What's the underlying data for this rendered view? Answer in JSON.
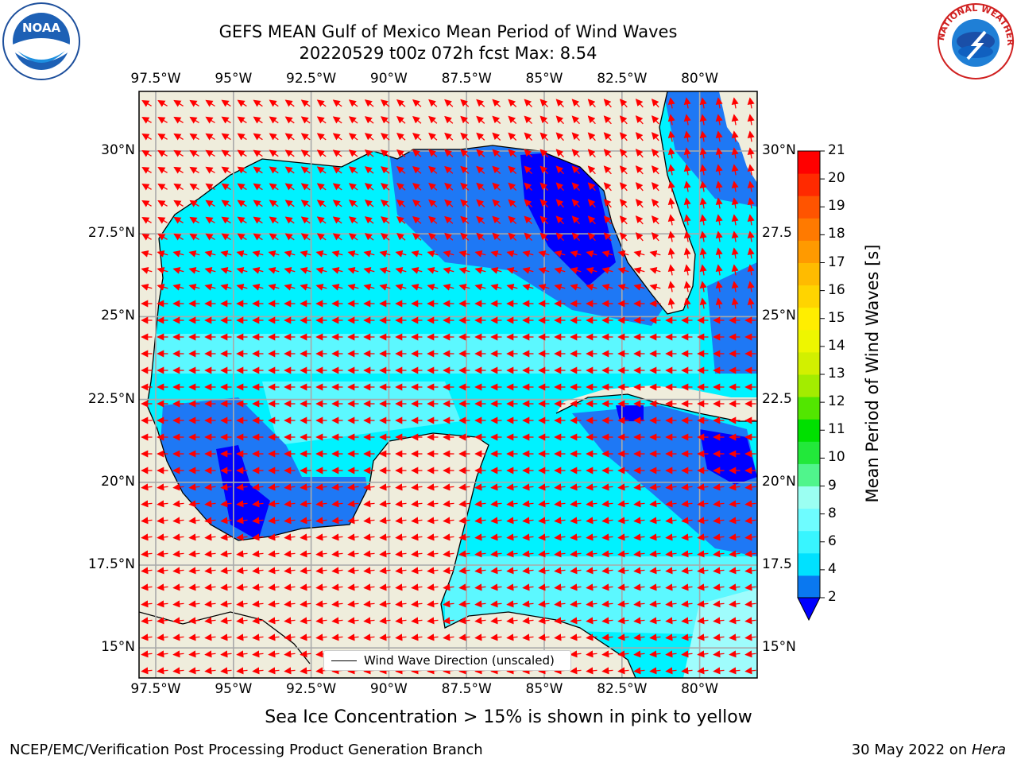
{
  "title": {
    "line1": "GEFS MEAN Gulf of Mexico Mean Period of Wind Waves",
    "line2": "20220529 t00z 072h fcst   Max: 8.54"
  },
  "logos": {
    "left": {
      "name": "noaa-logo",
      "text": "NOAA"
    },
    "right": {
      "name": "nws-logo",
      "text": "NATIONAL WEATHER SERVICE"
    }
  },
  "axes": {
    "lon_labels": [
      "97.5°W",
      "95°W",
      "92.5°W",
      "90°W",
      "87.5°W",
      "85°W",
      "82.5°W",
      "80°W"
    ],
    "lat_labels": [
      "30°N",
      "27.5°N",
      "25°N",
      "22.5°N",
      "20°N",
      "17.5°N",
      "15°N"
    ],
    "right_lat_labels": [
      "30°N",
      "27.5",
      "25°N",
      "22.5",
      "20°N",
      "17.5",
      "15°N"
    ]
  },
  "legend": {
    "label": "Wind Wave Direction (unscaled)"
  },
  "colorbar": {
    "label": "Mean Period of Wind Waves [s]",
    "ticks": [
      "2",
      "4",
      "6",
      "8",
      "9",
      "10",
      "11",
      "12",
      "13",
      "14",
      "15",
      "16",
      "17",
      "18",
      "19",
      "20",
      "21"
    ],
    "colors": [
      "#0a78f0",
      "#00e1ff",
      "#38f5ff",
      "#6efcff",
      "#9bfff2",
      "#50f58c",
      "#22e83a",
      "#00e000",
      "#52e600",
      "#a3ec00",
      "#d2f000",
      "#eef600",
      "#ffee00",
      "#ffd400",
      "#ffbb00",
      "#ff9a00",
      "#ff7a00",
      "#ff5400",
      "#ff2a00",
      "#ff0000"
    ],
    "underflow_color": "#0000ff"
  },
  "map": {
    "land_color": "#efeddc",
    "deep_blue": "#0000ff",
    "blue": "#1e78f5",
    "cyan": "#00f2ff",
    "light_cyan": "#5cf8ff",
    "pale_cyan": "#9ffcfc",
    "arrow_color": "#ff0000"
  },
  "bottom_note": "Sea Ice Concentration > 15% is shown in pink to yellow",
  "footer": {
    "left": "NCEP/EMC/Verification Post Processing Product Generation Branch",
    "right_date": "30 May 2022 on ",
    "right_machine": "Hera"
  }
}
